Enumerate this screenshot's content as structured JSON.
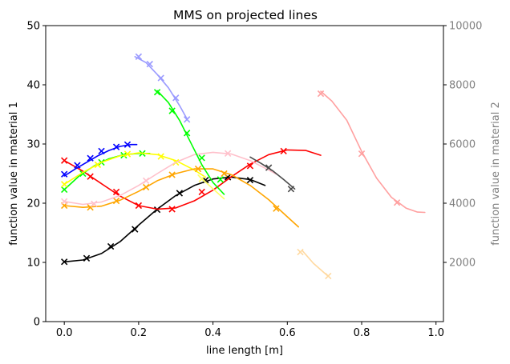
{
  "chart_data": {
    "type": "line",
    "title": "MMS on projected lines",
    "xlabel": "line length [m]",
    "ylabel": "function value in material 1",
    "ylabel_right": "function value in material 2",
    "xlim": [
      -0.05,
      1.02
    ],
    "ylim": [
      0,
      50
    ],
    "ylim_right": [
      0,
      10000
    ],
    "xticks": [
      "0.0",
      "0.2",
      "0.4",
      "0.6",
      "0.8",
      "1.0"
    ],
    "xtick_values": [
      0.0,
      0.2,
      0.4,
      0.6,
      0.8,
      1.0
    ],
    "yticks": [
      "0",
      "10",
      "20",
      "30",
      "40",
      "50"
    ],
    "ytick_values": [
      0,
      10,
      20,
      30,
      40,
      50
    ],
    "yticks_right": [
      "2000",
      "4000",
      "6000",
      "8000",
      "10000"
    ],
    "ytick_right_values": [
      2000,
      4000,
      6000,
      8000,
      10000
    ],
    "grid": false,
    "legend": false,
    "series": [
      {
        "color": "#000000",
        "axis": "left",
        "line": [
          [
            0.0,
            10.1
          ],
          [
            0.05,
            10.4
          ],
          [
            0.1,
            11.5
          ],
          [
            0.15,
            13.5
          ],
          [
            0.2,
            16.3
          ],
          [
            0.25,
            19.0
          ],
          [
            0.3,
            21.3
          ],
          [
            0.35,
            23.0
          ],
          [
            0.4,
            24.1
          ],
          [
            0.45,
            24.4
          ],
          [
            0.5,
            24.0
          ],
          [
            0.54,
            23.0
          ]
        ],
        "markers": [
          [
            0.0,
            10.1
          ],
          [
            0.06,
            10.7
          ],
          [
            0.125,
            12.7
          ],
          [
            0.19,
            15.6
          ],
          [
            0.25,
            18.9
          ],
          [
            0.31,
            21.7
          ],
          [
            0.38,
            23.9
          ],
          [
            0.44,
            24.4
          ],
          [
            0.5,
            23.9
          ]
        ]
      },
      {
        "color": "#ff0000",
        "axis": "left",
        "line": [
          [
            0.0,
            27.2
          ],
          [
            0.05,
            25.4
          ],
          [
            0.1,
            23.3
          ],
          [
            0.15,
            21.2
          ],
          [
            0.2,
            19.6
          ],
          [
            0.25,
            19.0
          ],
          [
            0.3,
            19.2
          ],
          [
            0.35,
            20.4
          ],
          [
            0.4,
            22.2
          ],
          [
            0.45,
            24.5
          ],
          [
            0.5,
            26.6
          ],
          [
            0.55,
            28.2
          ],
          [
            0.6,
            29.0
          ],
          [
            0.65,
            28.9
          ],
          [
            0.69,
            28.1
          ]
        ],
        "markers": [
          [
            0.0,
            27.2
          ],
          [
            0.07,
            24.5
          ],
          [
            0.14,
            21.9
          ],
          [
            0.2,
            19.6
          ],
          [
            0.29,
            19.0
          ],
          [
            0.37,
            21.9
          ],
          [
            0.5,
            26.3
          ],
          [
            0.59,
            28.8
          ]
        ]
      },
      {
        "color": "#0000ff",
        "axis": "left",
        "line": [
          [
            0.0,
            24.6
          ],
          [
            0.03,
            25.8
          ],
          [
            0.06,
            26.9
          ],
          [
            0.09,
            28.0
          ],
          [
            0.12,
            28.9
          ],
          [
            0.15,
            29.6
          ],
          [
            0.18,
            29.9
          ],
          [
            0.195,
            29.9
          ]
        ],
        "markers": [
          [
            0.0,
            24.9
          ],
          [
            0.035,
            26.4
          ],
          [
            0.07,
            27.6
          ],
          [
            0.1,
            28.8
          ],
          [
            0.14,
            29.5
          ],
          [
            0.17,
            29.9
          ]
        ]
      },
      {
        "color": "#00ff00",
        "axis": "left",
        "line": [
          [
            0.0,
            22.3
          ],
          [
            0.04,
            24.6
          ],
          [
            0.08,
            26.3
          ],
          [
            0.12,
            27.5
          ],
          [
            0.16,
            28.2
          ],
          [
            0.2,
            28.4
          ],
          [
            0.23,
            28.4
          ]
        ],
        "markers": [
          [
            0.0,
            22.3
          ],
          [
            0.05,
            25.0
          ],
          [
            0.1,
            26.9
          ],
          [
            0.16,
            28.1
          ],
          [
            0.21,
            28.4
          ]
        ]
      },
      {
        "color": "#ffff00",
        "axis": "left",
        "line": [
          [
            0.0,
            23.2
          ],
          [
            0.05,
            25.2
          ],
          [
            0.1,
            26.9
          ],
          [
            0.15,
            28.0
          ],
          [
            0.2,
            28.5
          ],
          [
            0.25,
            28.2
          ],
          [
            0.3,
            27.2
          ],
          [
            0.35,
            25.6
          ],
          [
            0.38,
            24.4
          ]
        ],
        "markers": [
          [
            0.0,
            23.2
          ],
          [
            0.09,
            26.5
          ],
          [
            0.17,
            28.3
          ],
          [
            0.26,
            27.9
          ],
          [
            0.3,
            26.9
          ]
        ]
      },
      {
        "color": "#ffa500",
        "axis": "left",
        "line": [
          [
            0.0,
            19.6
          ],
          [
            0.05,
            19.3
          ],
          [
            0.1,
            19.5
          ],
          [
            0.15,
            20.5
          ],
          [
            0.2,
            22.0
          ],
          [
            0.25,
            23.8
          ],
          [
            0.3,
            25.0
          ],
          [
            0.35,
            25.8
          ],
          [
            0.4,
            25.8
          ],
          [
            0.45,
            24.8
          ],
          [
            0.5,
            23.0
          ],
          [
            0.55,
            20.6
          ],
          [
            0.6,
            17.7
          ],
          [
            0.63,
            16.0
          ]
        ],
        "markers": [
          [
            0.0,
            19.6
          ],
          [
            0.07,
            19.3
          ],
          [
            0.14,
            20.4
          ],
          [
            0.22,
            22.7
          ],
          [
            0.29,
            24.8
          ],
          [
            0.36,
            25.8
          ],
          [
            0.43,
            25.0
          ],
          [
            0.57,
            19.1
          ]
        ]
      },
      {
        "color": "#ffc0cb",
        "axis": "left",
        "line": [
          [
            0.0,
            20.3
          ],
          [
            0.05,
            19.8
          ],
          [
            0.1,
            20.2
          ],
          [
            0.15,
            21.3
          ],
          [
            0.2,
            23.0
          ],
          [
            0.25,
            25.0
          ],
          [
            0.3,
            26.9
          ],
          [
            0.35,
            28.2
          ],
          [
            0.4,
            28.6
          ],
          [
            0.45,
            28.3
          ],
          [
            0.5,
            27.2
          ],
          [
            0.55,
            25.6
          ],
          [
            0.57,
            24.9
          ]
        ],
        "markers": [
          [
            0.0,
            20.3
          ],
          [
            0.08,
            19.9
          ],
          [
            0.22,
            23.8
          ],
          [
            0.44,
            28.4
          ]
        ]
      },
      {
        "color": "#4a4a4a",
        "axis": "left",
        "line": [
          [
            0.5,
            27.8
          ],
          [
            0.53,
            26.7
          ],
          [
            0.56,
            25.5
          ],
          [
            0.59,
            24.0
          ],
          [
            0.62,
            22.4
          ]
        ],
        "markers": [
          [
            0.55,
            26.0
          ],
          [
            0.61,
            22.4
          ]
        ]
      },
      {
        "color": "#9a9aff",
        "axis": "right",
        "line": [
          [
            0.19,
            8950
          ],
          [
            0.22,
            8750
          ],
          [
            0.25,
            8350
          ],
          [
            0.28,
            7900
          ],
          [
            0.31,
            7300
          ],
          [
            0.33,
            6850
          ]
        ],
        "markers": [
          [
            0.2,
            8950
          ],
          [
            0.23,
            8700
          ],
          [
            0.26,
            8230
          ],
          [
            0.3,
            7560
          ],
          [
            0.33,
            6830
          ]
        ]
      },
      {
        "color": "#00ff00",
        "axis": "right",
        "line": [
          [
            0.25,
            7800
          ],
          [
            0.28,
            7400
          ],
          [
            0.31,
            6800
          ],
          [
            0.34,
            6050
          ],
          [
            0.37,
            5300
          ],
          [
            0.4,
            4700
          ],
          [
            0.43,
            4300
          ]
        ],
        "markers": [
          [
            0.25,
            7750
          ],
          [
            0.29,
            7120
          ],
          [
            0.33,
            6370
          ],
          [
            0.37,
            5530
          ],
          [
            0.42,
            4800
          ]
        ]
      },
      {
        "color": "#ffff66",
        "axis": "right",
        "line": [
          [
            0.36,
            4950
          ],
          [
            0.39,
            4600
          ],
          [
            0.43,
            4150
          ]
        ],
        "markers": [
          [
            0.37,
            4820
          ]
        ]
      },
      {
        "color": "#ffa0a0",
        "axis": "right",
        "line": [
          [
            0.69,
            7780
          ],
          [
            0.72,
            7450
          ],
          [
            0.76,
            6800
          ],
          [
            0.8,
            5750
          ],
          [
            0.84,
            4850
          ],
          [
            0.88,
            4200
          ],
          [
            0.92,
            3830
          ],
          [
            0.95,
            3700
          ],
          [
            0.97,
            3690
          ]
        ],
        "markers": [
          [
            0.69,
            7700
          ],
          [
            0.8,
            5670
          ],
          [
            0.895,
            4020
          ]
        ]
      },
      {
        "color": "#ffd9a0",
        "axis": "right",
        "line": [
          [
            0.64,
            2400
          ],
          [
            0.67,
            1970
          ],
          [
            0.71,
            1530
          ]
        ],
        "markers": [
          [
            0.635,
            2350
          ],
          [
            0.71,
            1540
          ]
        ]
      }
    ]
  }
}
